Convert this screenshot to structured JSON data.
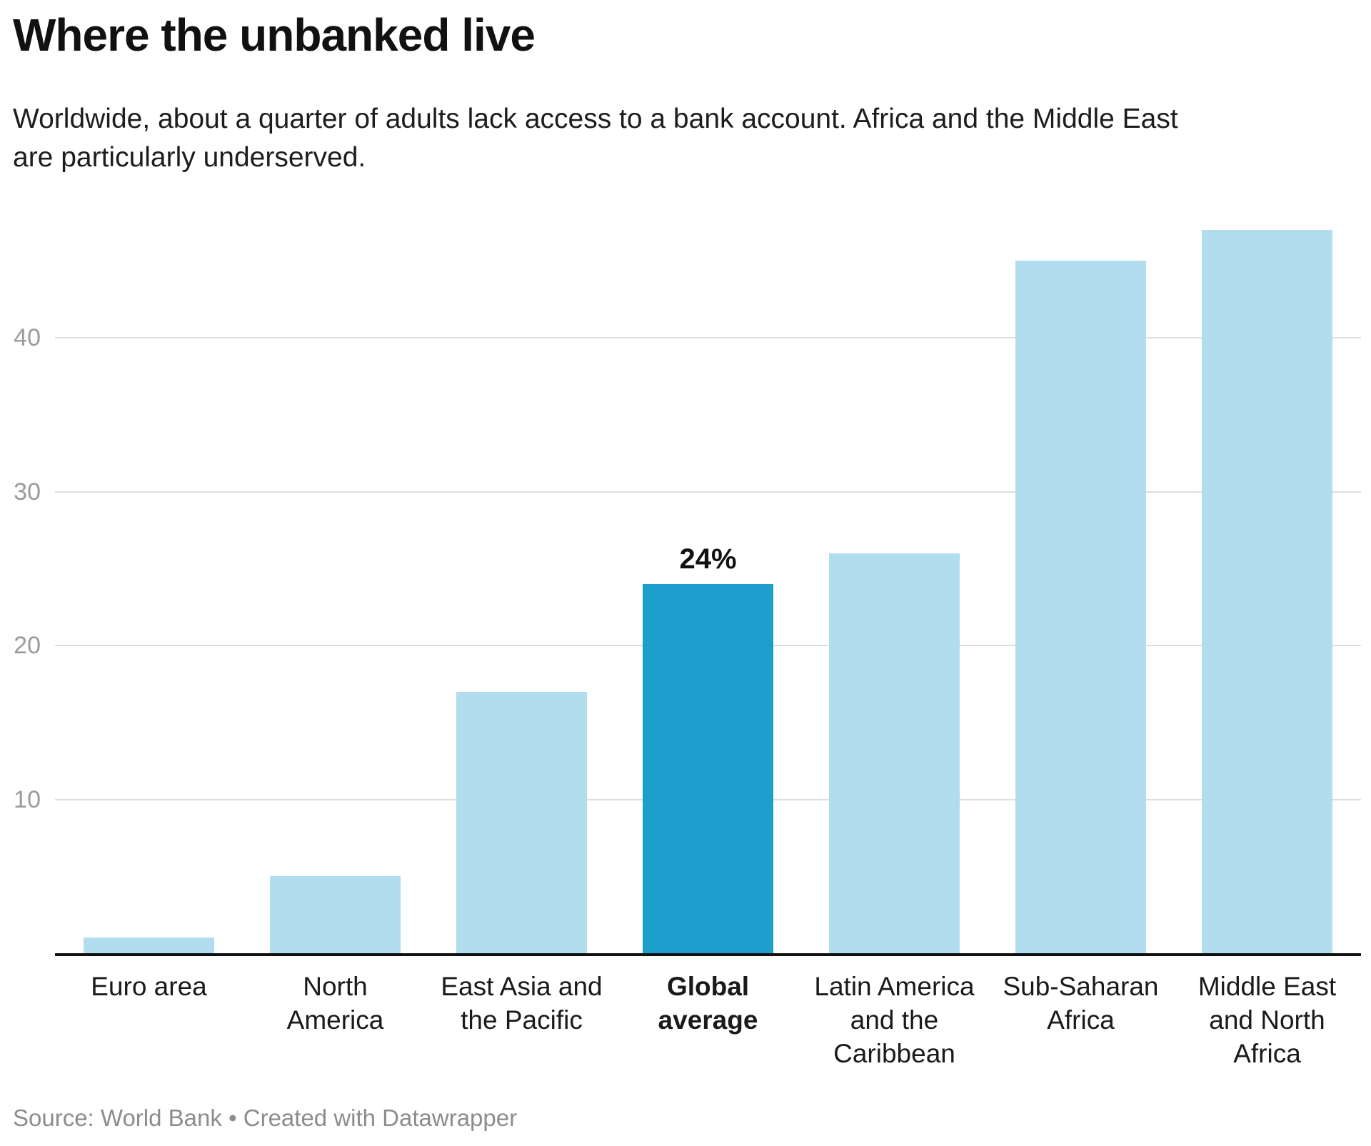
{
  "header": {
    "subtitle_lines": [
      "Worldwide, about a quarter of adults lack access to a bank account. Africa and the Middle East",
      "are particularly underserved."
    ]
  },
  "footer": {
    "text": "Source: World Bank • Created with Datawrapper"
  },
  "chart_data": {
    "type": "bar",
    "title": "Where the unbanked live",
    "subtitle": "Worldwide, about a quarter of adults lack access to a bank account. Africa and the Middle East are particularly underserved.",
    "categories": [
      "Euro area",
      "North America",
      "East Asia and the Pacific",
      "Global average",
      "Latin America and the Caribbean",
      "Sub-Saharan Africa",
      "Middle East and North Africa"
    ],
    "categories_wrapped": [
      [
        "Euro area"
      ],
      [
        "North",
        "America"
      ],
      [
        "East Asia and",
        "the Pacific"
      ],
      [
        "Global",
        "average"
      ],
      [
        "Latin America",
        "and the",
        "Caribbean"
      ],
      [
        "Sub-Saharan",
        "Africa"
      ],
      [
        "Middle East",
        "and North",
        "Africa"
      ]
    ],
    "values": [
      1,
      5,
      17,
      24,
      26,
      45,
      47
    ],
    "unit": "%",
    "xlabel": "",
    "ylabel": "",
    "ylim": [
      0,
      47.5
    ],
    "yticks": [
      10,
      20,
      30,
      40
    ],
    "grid": true,
    "legend": "none",
    "highlight_index": 3,
    "value_label": {
      "index": 3,
      "text": "24%"
    },
    "colors": {
      "bar": "#b2ddee",
      "highlight": "#1c9fcd"
    },
    "source": "World Bank"
  }
}
